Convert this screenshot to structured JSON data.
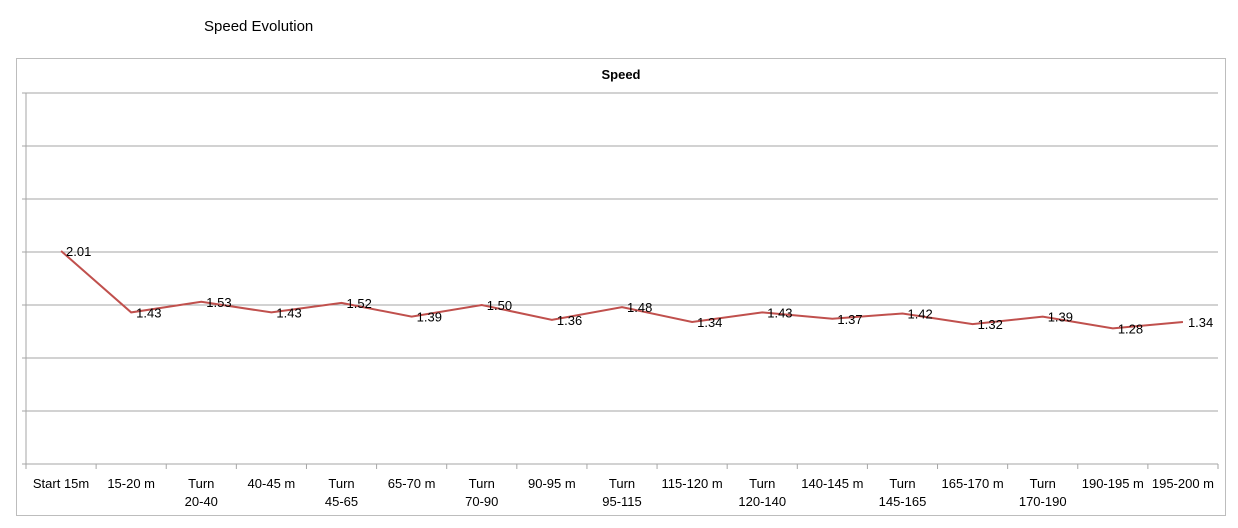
{
  "page": {
    "title": "Speed Evolution"
  },
  "chart_data": {
    "type": "line",
    "title": "Speed",
    "xlabel": "",
    "ylabel": "",
    "ylim": [
      0,
      3.5
    ],
    "grid": true,
    "legend": "none",
    "categories": [
      "Start 15m",
      "15-20 m",
      "Turn 20-40",
      "40-45 m",
      "Turn 45-65",
      "65-70 m",
      "Turn 70-90",
      "90-95 m",
      "Turn 95-115",
      "115-120 m",
      "Turn 120-140",
      "140-145 m",
      "Turn 145-165",
      "165-170 m",
      "Turn 170-190",
      "190-195 m",
      "195-200 m"
    ],
    "series": [
      {
        "values": [
          2.01,
          1.43,
          1.53,
          1.43,
          1.52,
          1.39,
          1.5,
          1.36,
          1.48,
          1.34,
          1.43,
          1.37,
          1.42,
          1.32,
          1.39,
          1.28,
          1.34
        ],
        "labels": [
          "2.01",
          "1.43",
          "1.53",
          "1.43",
          "1.52",
          "1.39",
          "1.50",
          "1.36",
          "1.48",
          "1.34",
          "1.43",
          "1.37",
          "1.42",
          "1.32",
          "1.39",
          "1.28",
          "1.34"
        ],
        "color": "#c0504d"
      }
    ]
  }
}
